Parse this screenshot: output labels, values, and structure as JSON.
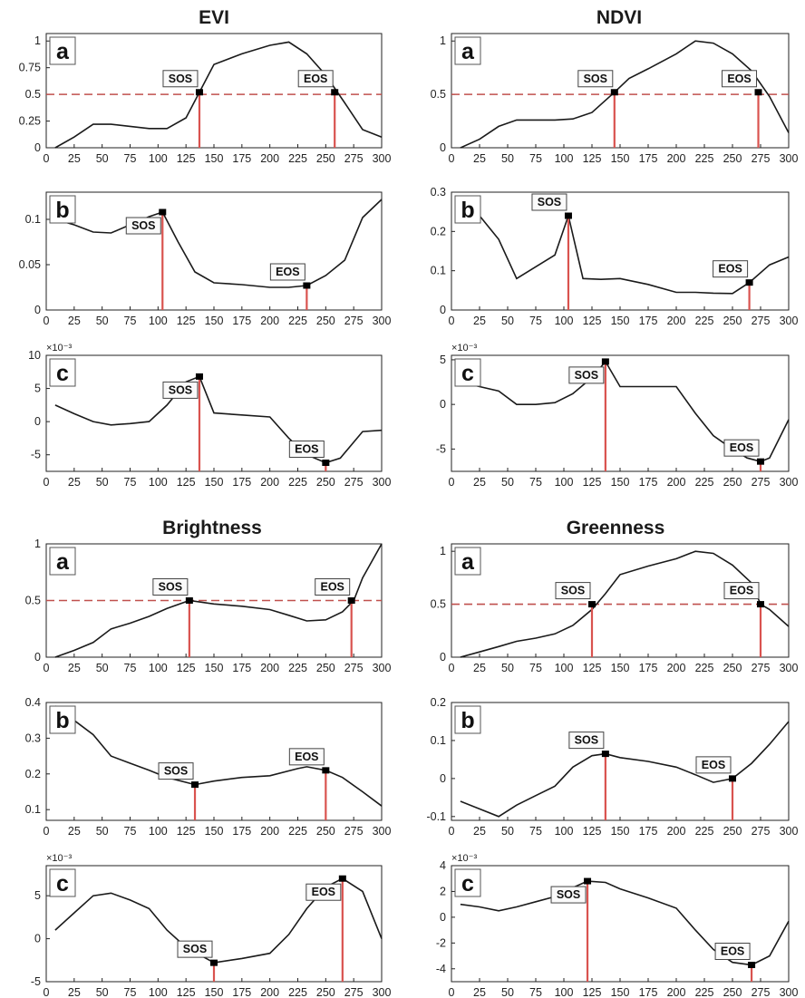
{
  "titles": {
    "evi": "EVI",
    "ndvi": "NDVI",
    "brightness": "Brightness",
    "greenness": "Greenness"
  },
  "style": {
    "line_color": "#1a1a1a",
    "drop_color": "#d9534f",
    "threshold_color": "#c0504d",
    "marker_color": "#000000"
  },
  "chart_data": [
    {
      "id": "evi-a",
      "group": "EVI",
      "type": "line",
      "panel_label": "a",
      "x": [
        8,
        25,
        42,
        58,
        75,
        92,
        108,
        125,
        137,
        150,
        175,
        200,
        217,
        233,
        250,
        267,
        283,
        300
      ],
      "y": [
        0,
        0.1,
        0.22,
        0.22,
        0.2,
        0.18,
        0.18,
        0.28,
        0.52,
        0.78,
        0.88,
        0.96,
        0.99,
        0.88,
        0.68,
        0.42,
        0.17,
        0.1
      ],
      "xlim": [
        0,
        300
      ],
      "ylim": [
        0,
        1.07
      ],
      "xticks": [
        "0",
        "25",
        "50",
        "75",
        "100",
        "125",
        "150",
        "175",
        "200",
        "225",
        "250",
        "275",
        "300"
      ],
      "yticks": [
        "0",
        "0.25",
        "0.5",
        "0.75",
        "1"
      ],
      "ytick_values": [
        0,
        0.25,
        0.5,
        0.75,
        1
      ],
      "threshold": 0.5,
      "sos": {
        "label": "SOS",
        "x": 137,
        "y": 0.52
      },
      "eos": {
        "label": "EOS",
        "x": 258,
        "y": 0.52
      }
    },
    {
      "id": "ndvi-a",
      "group": "NDVI",
      "type": "line",
      "panel_label": "a",
      "x": [
        8,
        25,
        42,
        58,
        75,
        92,
        108,
        125,
        145,
        158,
        175,
        200,
        217,
        233,
        250,
        267,
        283,
        300
      ],
      "y": [
        0,
        0.08,
        0.2,
        0.26,
        0.26,
        0.26,
        0.27,
        0.33,
        0.52,
        0.65,
        0.74,
        0.88,
        1.0,
        0.98,
        0.88,
        0.72,
        0.48,
        0.14
      ],
      "xlim": [
        0,
        300
      ],
      "ylim": [
        0,
        1.07
      ],
      "xticks": [
        "0",
        "25",
        "50",
        "75",
        "100",
        "125",
        "150",
        "175",
        "200",
        "225",
        "250",
        "275",
        "300"
      ],
      "yticks": [
        "0",
        "0.5",
        "1"
      ],
      "ytick_values": [
        0,
        0.5,
        1
      ],
      "threshold": 0.5,
      "sos": {
        "label": "SOS",
        "x": 145,
        "y": 0.52
      },
      "eos": {
        "label": "EOS",
        "x": 273,
        "y": 0.52
      }
    },
    {
      "id": "evi-b",
      "group": "EVI",
      "type": "line",
      "panel_label": "b",
      "x": [
        8,
        25,
        42,
        58,
        75,
        92,
        104,
        118,
        133,
        150,
        175,
        200,
        217,
        233,
        250,
        267,
        283,
        300
      ],
      "y": [
        0.1,
        0.094,
        0.086,
        0.085,
        0.094,
        0.103,
        0.108,
        0.075,
        0.042,
        0.03,
        0.028,
        0.025,
        0.025,
        0.027,
        0.038,
        0.055,
        0.102,
        0.122
      ],
      "xlim": [
        0,
        300
      ],
      "ylim": [
        0,
        0.13
      ],
      "xticks": [
        "0",
        "25",
        "50",
        "75",
        "100",
        "125",
        "150",
        "175",
        "200",
        "225",
        "250",
        "275",
        "300"
      ],
      "yticks": [
        "0",
        "0.05",
        "0.1"
      ],
      "ytick_values": [
        0,
        0.05,
        0.1
      ],
      "sos": {
        "label": "SOS",
        "x": 104,
        "y": 0.108
      },
      "eos": {
        "label": "EOS",
        "x": 233,
        "y": 0.027
      }
    },
    {
      "id": "ndvi-b",
      "group": "NDVI",
      "type": "line",
      "panel_label": "b",
      "x": [
        8,
        25,
        42,
        58,
        75,
        92,
        104,
        117,
        133,
        150,
        175,
        200,
        217,
        233,
        250,
        265,
        283,
        300
      ],
      "y": [
        0.29,
        0.24,
        0.18,
        0.08,
        0.11,
        0.14,
        0.24,
        0.08,
        0.078,
        0.08,
        0.065,
        0.045,
        0.045,
        0.043,
        0.042,
        0.07,
        0.115,
        0.135
      ],
      "xlim": [
        0,
        300
      ],
      "ylim": [
        0,
        0.3
      ],
      "xticks": [
        "0",
        "25",
        "50",
        "75",
        "100",
        "125",
        "150",
        "175",
        "200",
        "225",
        "250",
        "275",
        "300"
      ],
      "yticks": [
        "0",
        "0.1",
        "0.2",
        "0.3"
      ],
      "ytick_values": [
        0,
        0.1,
        0.2,
        0.3
      ],
      "sos": {
        "label": "SOS",
        "x": 104,
        "y": 0.24
      },
      "eos": {
        "label": "EOS",
        "x": 265,
        "y": 0.07
      }
    },
    {
      "id": "evi-c",
      "group": "EVI",
      "type": "line",
      "panel_label": "c",
      "multiplier": "×10⁻³",
      "x": [
        8,
        25,
        42,
        58,
        75,
        92,
        108,
        125,
        137,
        150,
        175,
        200,
        217,
        233,
        250,
        263,
        283,
        300
      ],
      "y": [
        2.5,
        1.2,
        0,
        -0.5,
        -0.3,
        0,
        2.5,
        6,
        6.8,
        1.3,
        1,
        0.7,
        -2.5,
        -5,
        -6.2,
        -5.5,
        -1.5,
        -1.3
      ],
      "xlim": [
        0,
        300
      ],
      "ylim": [
        -7.5,
        10
      ],
      "xticks": [
        "0",
        "25",
        "50",
        "75",
        "100",
        "125",
        "150",
        "175",
        "200",
        "225",
        "250",
        "275",
        "300"
      ],
      "yticks": [
        "-5",
        "0",
        "5",
        "10"
      ],
      "ytick_values": [
        -5,
        0,
        5,
        10
      ],
      "sos": {
        "label": "SOS",
        "x": 137,
        "y": 6.8
      },
      "eos": {
        "label": "EOS",
        "x": 250,
        "y": -6.2
      }
    },
    {
      "id": "ndvi-c",
      "group": "NDVI",
      "type": "line",
      "panel_label": "c",
      "multiplier": "×10⁻³",
      "x": [
        8,
        25,
        42,
        58,
        75,
        92,
        108,
        125,
        137,
        150,
        175,
        200,
        217,
        233,
        250,
        263,
        275,
        283,
        300
      ],
      "y": [
        2.5,
        2,
        1.5,
        0,
        0,
        0.2,
        1.2,
        3,
        4.8,
        2,
        2,
        2,
        -1,
        -3.5,
        -5,
        -6,
        -6.4,
        -6,
        -1.7
      ],
      "xlim": [
        0,
        300
      ],
      "ylim": [
        -7.5,
        5.5
      ],
      "xticks": [
        "0",
        "25",
        "50",
        "75",
        "100",
        "125",
        "150",
        "175",
        "200",
        "225",
        "250",
        "275",
        "300"
      ],
      "yticks": [
        "-5",
        "0",
        "5"
      ],
      "ytick_values": [
        -5,
        0,
        5
      ],
      "sos": {
        "label": "SOS",
        "x": 137,
        "y": 4.8
      },
      "eos": {
        "label": "EOS",
        "x": 275,
        "y": -6.4
      }
    },
    {
      "id": "brightness-a",
      "group": "Brightness",
      "type": "line",
      "panel_label": "a",
      "x": [
        8,
        25,
        42,
        58,
        75,
        92,
        108,
        128,
        150,
        175,
        200,
        217,
        233,
        250,
        265,
        275,
        283,
        300
      ],
      "y": [
        0,
        0.06,
        0.13,
        0.25,
        0.3,
        0.36,
        0.43,
        0.5,
        0.47,
        0.45,
        0.42,
        0.37,
        0.32,
        0.33,
        0.4,
        0.5,
        0.7,
        1.0
      ],
      "xlim": [
        0,
        300
      ],
      "ylim": [
        0,
        1.0
      ],
      "xticks": [
        "0",
        "25",
        "50",
        "75",
        "100",
        "125",
        "150",
        "175",
        "200",
        "225",
        "250",
        "275",
        "300"
      ],
      "yticks": [
        "0",
        "0.5",
        "1"
      ],
      "ytick_values": [
        0,
        0.5,
        1
      ],
      "threshold": 0.5,
      "sos": {
        "label": "SOS",
        "x": 128,
        "y": 0.5
      },
      "eos": {
        "label": "EOS",
        "x": 273,
        "y": 0.5
      }
    },
    {
      "id": "greenness-a",
      "group": "Greenness",
      "type": "line",
      "panel_label": "a",
      "x": [
        8,
        25,
        42,
        58,
        75,
        92,
        108,
        125,
        137,
        150,
        175,
        200,
        217,
        233,
        250,
        267,
        275,
        283,
        300
      ],
      "y": [
        0,
        0.05,
        0.1,
        0.15,
        0.18,
        0.22,
        0.3,
        0.45,
        0.6,
        0.78,
        0.86,
        0.93,
        1.0,
        0.98,
        0.87,
        0.7,
        0.5,
        0.45,
        0.29
      ],
      "xlim": [
        0,
        300
      ],
      "ylim": [
        0,
        1.07
      ],
      "xticks": [
        "0",
        "25",
        "50",
        "75",
        "100",
        "125",
        "150",
        "175",
        "200",
        "225",
        "250",
        "275",
        "300"
      ],
      "yticks": [
        "0",
        "0.5",
        "1"
      ],
      "ytick_values": [
        0,
        0.5,
        1
      ],
      "threshold": 0.5,
      "sos": {
        "label": "SOS",
        "x": 125,
        "y": 0.5
      },
      "eos": {
        "label": "EOS",
        "x": 275,
        "y": 0.5
      }
    },
    {
      "id": "brightness-b",
      "group": "Brightness",
      "type": "line",
      "panel_label": "b",
      "x": [
        8,
        25,
        42,
        58,
        75,
        92,
        108,
        133,
        150,
        175,
        200,
        225,
        233,
        250,
        265,
        283,
        300
      ],
      "y": [
        0.39,
        0.35,
        0.31,
        0.25,
        0.23,
        0.21,
        0.19,
        0.17,
        0.18,
        0.19,
        0.195,
        0.215,
        0.22,
        0.21,
        0.19,
        0.15,
        0.11
      ],
      "xlim": [
        0,
        300
      ],
      "ylim": [
        0.07,
        0.4
      ],
      "xticks": [
        "0",
        "25",
        "50",
        "75",
        "100",
        "125",
        "150",
        "175",
        "200",
        "225",
        "250",
        "275",
        "300"
      ],
      "yticks": [
        "0.1",
        "0.2",
        "0.3",
        "0.4"
      ],
      "ytick_values": [
        0.1,
        0.2,
        0.3,
        0.4
      ],
      "sos": {
        "label": "SOS",
        "x": 133,
        "y": 0.17
      },
      "eos": {
        "label": "EOS",
        "x": 250,
        "y": 0.21
      }
    },
    {
      "id": "greenness-b",
      "group": "Greenness",
      "type": "line",
      "panel_label": "b",
      "x": [
        8,
        25,
        42,
        58,
        75,
        92,
        108,
        125,
        137,
        150,
        175,
        200,
        217,
        233,
        250,
        267,
        283,
        300
      ],
      "y": [
        -0.06,
        -0.08,
        -0.1,
        -0.07,
        -0.045,
        -0.02,
        0.03,
        0.06,
        0.065,
        0.055,
        0.045,
        0.03,
        0.01,
        -0.01,
        0,
        0.04,
        0.09,
        0.15
      ],
      "xlim": [
        0,
        300
      ],
      "ylim": [
        -0.11,
        0.2
      ],
      "xticks": [
        "0",
        "25",
        "50",
        "75",
        "100",
        "125",
        "150",
        "175",
        "200",
        "225",
        "250",
        "275",
        "300"
      ],
      "yticks": [
        "-0.1",
        "0",
        "0.1",
        "0.2"
      ],
      "ytick_values": [
        -0.1,
        0,
        0.1,
        0.2
      ],
      "sos": {
        "label": "SOS",
        "x": 137,
        "y": 0.065
      },
      "eos": {
        "label": "EOS",
        "x": 250,
        "y": 0
      },
      "zero_line": true
    },
    {
      "id": "brightness-c",
      "group": "Brightness",
      "type": "line",
      "panel_label": "c",
      "multiplier": "×10⁻³",
      "x": [
        8,
        25,
        42,
        58,
        75,
        92,
        108,
        125,
        150,
        175,
        200,
        217,
        233,
        250,
        265,
        283,
        300
      ],
      "y": [
        1,
        3,
        5,
        5.3,
        4.5,
        3.5,
        1,
        -1,
        -2.8,
        -2.3,
        -1.7,
        0.5,
        3.5,
        6,
        7,
        5.5,
        0
      ],
      "xlim": [
        0,
        300
      ],
      "ylim": [
        -5,
        8.5
      ],
      "xticks": [
        "0",
        "25",
        "50",
        "75",
        "100",
        "125",
        "150",
        "175",
        "200",
        "225",
        "250",
        "275",
        "300"
      ],
      "yticks": [
        "-5",
        "0",
        "5"
      ],
      "ytick_values": [
        -5,
        0,
        5
      ],
      "sos": {
        "label": "SOS",
        "x": 150,
        "y": -2.8
      },
      "eos": {
        "label": "EOS",
        "x": 265,
        "y": 7
      }
    },
    {
      "id": "greenness-c",
      "group": "Greenness",
      "type": "line",
      "panel_label": "c",
      "multiplier": "×10⁻³",
      "x": [
        8,
        25,
        42,
        58,
        75,
        92,
        108,
        121,
        137,
        150,
        175,
        200,
        217,
        233,
        250,
        267,
        283,
        300
      ],
      "y": [
        1,
        0.8,
        0.5,
        0.8,
        1.2,
        1.6,
        2.3,
        2.8,
        2.7,
        2.2,
        1.5,
        0.7,
        -1,
        -2.5,
        -3.5,
        -3.7,
        -3,
        -0.3
      ],
      "xlim": [
        0,
        300
      ],
      "ylim": [
        -5,
        4
      ],
      "xticks": [
        "0",
        "25",
        "50",
        "75",
        "100",
        "125",
        "150",
        "175",
        "200",
        "225",
        "250",
        "275",
        "300"
      ],
      "yticks": [
        "-4",
        "-2",
        "0",
        "2",
        "4"
      ],
      "ytick_values": [
        -4,
        -2,
        0,
        2,
        4
      ],
      "sos": {
        "label": "SOS",
        "x": 121,
        "y": 2.8
      },
      "eos": {
        "label": "EOS",
        "x": 267,
        "y": -3.7
      }
    }
  ]
}
